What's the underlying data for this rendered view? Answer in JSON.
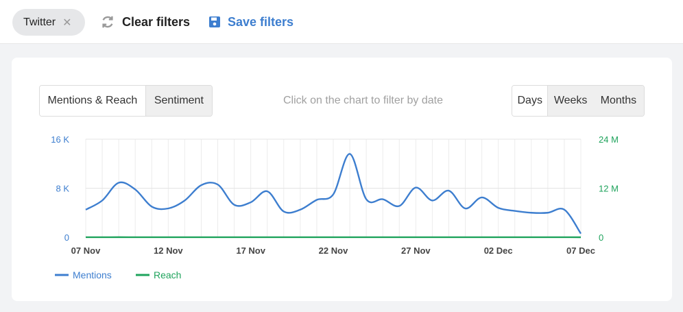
{
  "filters": {
    "chip_label": "Twitter",
    "chip_close": "✕",
    "clear_label": "Clear filters",
    "save_label": "Save filters"
  },
  "chart_panel": {
    "tabs": [
      "Mentions & Reach",
      "Sentiment"
    ],
    "active_tab": "Mentions & Reach",
    "hint": "Click on the chart to filter by date",
    "granularity": [
      "Days",
      "Weeks",
      "Months"
    ],
    "active_granularity": "Days"
  },
  "colors": {
    "mentions": "#3d7ecf",
    "reach": "#1fa35c"
  },
  "chart_data": {
    "type": "line",
    "x_tick_labels": [
      "07 Nov",
      "12 Nov",
      "17 Nov",
      "22 Nov",
      "27 Nov",
      "02 Dec",
      "07 Dec"
    ],
    "y_left": {
      "ticks": [
        "0",
        "8 K",
        "16 K"
      ],
      "range": [
        0,
        16000
      ]
    },
    "y_right": {
      "ticks": [
        "0",
        "12 M",
        "24 M"
      ],
      "range": [
        0,
        24000000
      ]
    },
    "x": [
      "07 Nov",
      "08 Nov",
      "09 Nov",
      "10 Nov",
      "11 Nov",
      "12 Nov",
      "13 Nov",
      "14 Nov",
      "15 Nov",
      "16 Nov",
      "17 Nov",
      "18 Nov",
      "19 Nov",
      "20 Nov",
      "21 Nov",
      "22 Nov",
      "23 Nov",
      "24 Nov",
      "25 Nov",
      "26 Nov",
      "27 Nov",
      "28 Nov",
      "29 Nov",
      "30 Nov",
      "01 Dec",
      "02 Dec",
      "03 Dec",
      "04 Dec",
      "05 Dec",
      "06 Dec",
      "07 Dec"
    ],
    "series": [
      {
        "name": "Mentions",
        "axis": "left",
        "values": [
          4500,
          6000,
          8900,
          7800,
          5000,
          4700,
          6000,
          8500,
          8600,
          5300,
          5700,
          7500,
          4200,
          4500,
          6100,
          7000,
          13600,
          6200,
          6200,
          5100,
          8100,
          6000,
          7600,
          4700,
          6500,
          4800,
          4300,
          4000,
          4000,
          4500,
          600
        ]
      },
      {
        "name": "Reach",
        "axis": "right",
        "values": [
          9500,
          9000,
          19500,
          12000,
          7000,
          5000,
          4000,
          6700,
          5500,
          6000,
          7700,
          5700,
          4500,
          4500,
          6000,
          11500,
          9000,
          13800,
          17800,
          6000,
          9000,
          6200,
          8100,
          6700,
          9700,
          9000,
          4500,
          4000,
          4200,
          6000,
          800
        ]
      }
    ]
  }
}
